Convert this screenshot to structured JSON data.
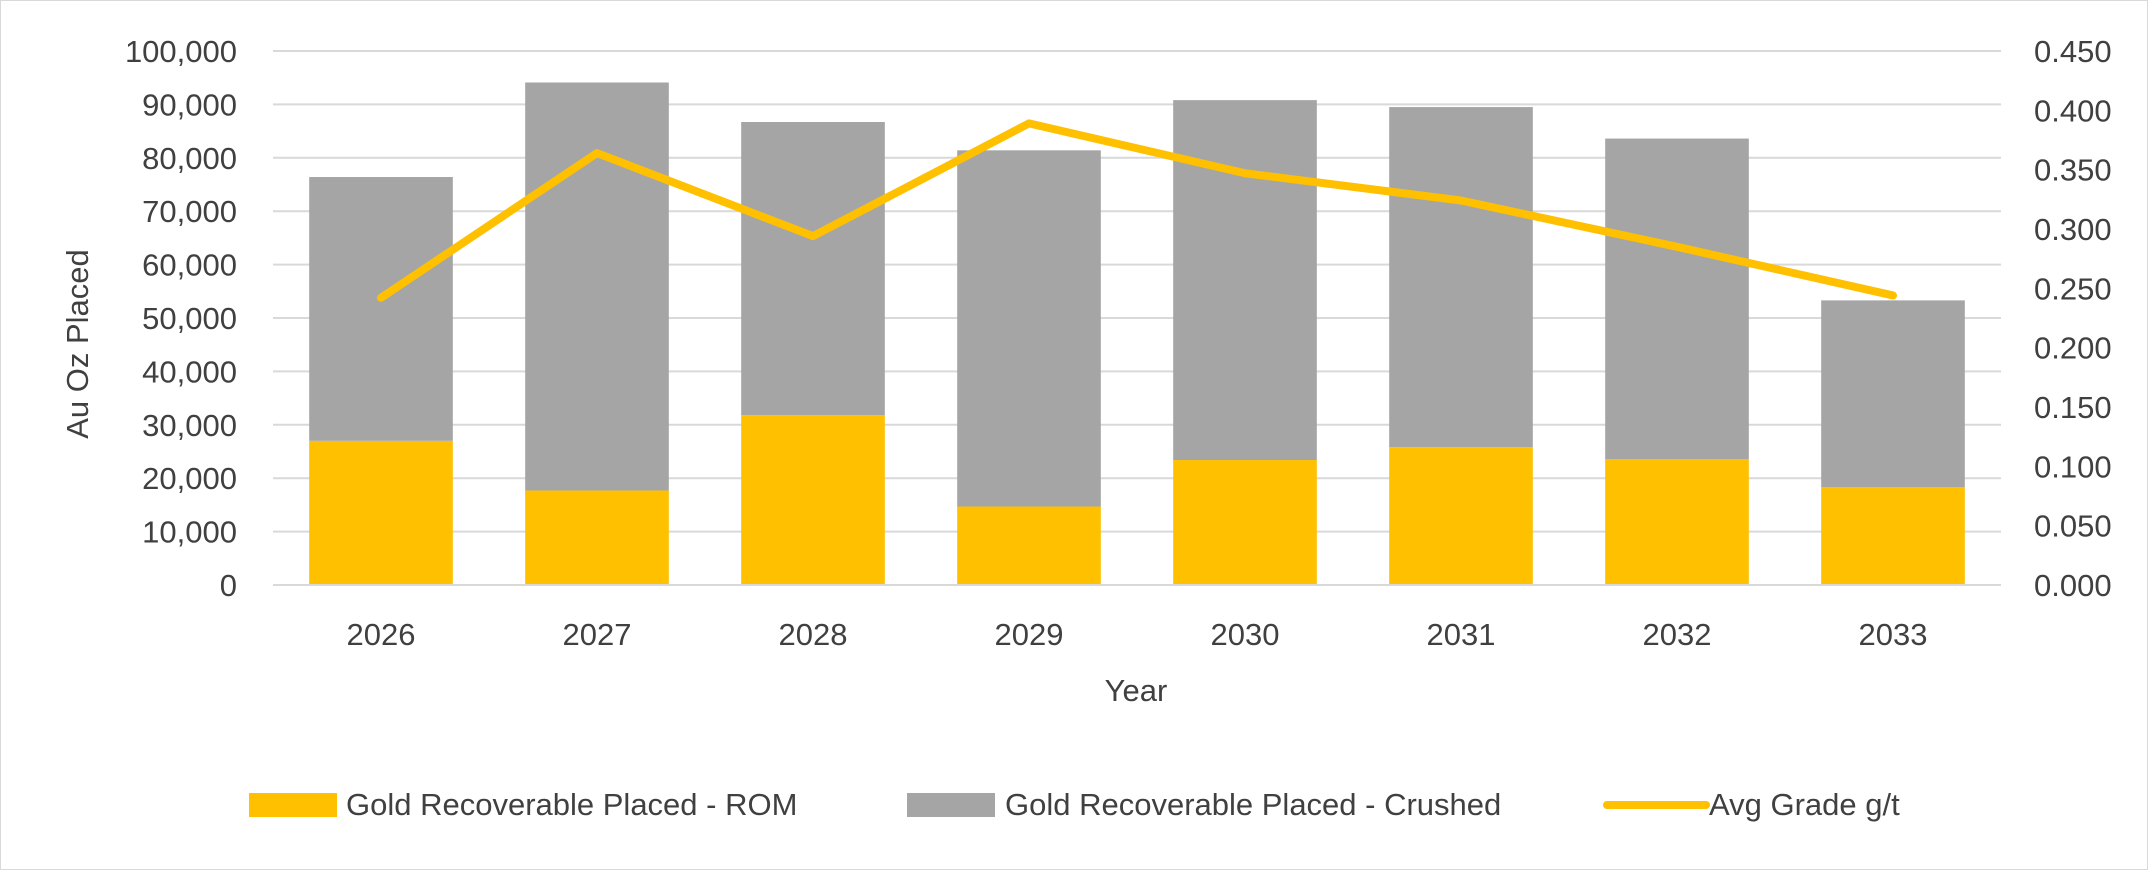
{
  "chart_data": {
    "type": "bar",
    "stacked": true,
    "categories": [
      "2026",
      "2027",
      "2028",
      "2029",
      "2030",
      "2031",
      "2032",
      "2033"
    ],
    "series": [
      {
        "name": "Gold Recoverable Placed - ROM",
        "type": "bar",
        "axis": "left",
        "color": "#FFC000",
        "values": [
          27000,
          17700,
          31800,
          14700,
          23400,
          25800,
          23600,
          18300
        ]
      },
      {
        "name": "Gold Recoverable Placed - Crushed",
        "type": "bar",
        "axis": "left",
        "color": "#A5A5A5",
        "values": [
          49400,
          76400,
          54900,
          66700,
          67400,
          63700,
          60000,
          35000
        ]
      },
      {
        "name": "Avg Grade g/t",
        "type": "line",
        "axis": "right",
        "color": "#FFC000",
        "values": [
          0.242,
          0.364,
          0.294,
          0.389,
          0.347,
          0.324,
          0.285,
          0.244
        ]
      }
    ],
    "xlabel": "Year",
    "ylabel": "Au Oz Placed",
    "ylim": [
      0,
      100000
    ],
    "y2lim": [
      0,
      0.45
    ],
    "yticks": [
      "0",
      "10,000",
      "20,000",
      "30,000",
      "40,000",
      "50,000",
      "60,000",
      "70,000",
      "80,000",
      "90,000",
      "100,000"
    ],
    "y2ticks": [
      "0.000",
      "0.050",
      "0.100",
      "0.150",
      "0.200",
      "0.250",
      "0.300",
      "0.350",
      "0.400",
      "0.450"
    ],
    "grid": true,
    "legend_position": "bottom"
  }
}
